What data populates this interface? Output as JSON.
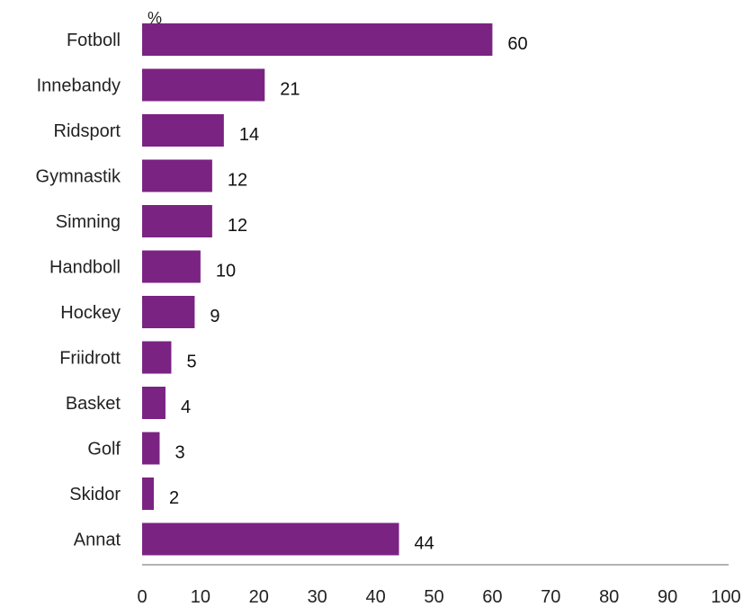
{
  "chart_data": {
    "type": "bar",
    "orientation": "horizontal",
    "unit": "%",
    "title": "",
    "xlabel": "",
    "ylabel": "",
    "categories": [
      "Fotboll",
      "Innebandy",
      "Ridsport",
      "Gymnastik",
      "Simning",
      "Handboll",
      "Hockey",
      "Friidrott",
      "Basket",
      "Golf",
      "Skidor",
      "Annat"
    ],
    "values": [
      60,
      21,
      14,
      12,
      12,
      10,
      9,
      5,
      4,
      3,
      2,
      44
    ],
    "xlim": [
      0,
      100
    ],
    "xticks": [
      0,
      10,
      20,
      30,
      40,
      50,
      60,
      70,
      80,
      90,
      100
    ],
    "bar_color": "#7b2383",
    "axis_color": "#9a9a9a",
    "grid": false,
    "legend": "none"
  }
}
